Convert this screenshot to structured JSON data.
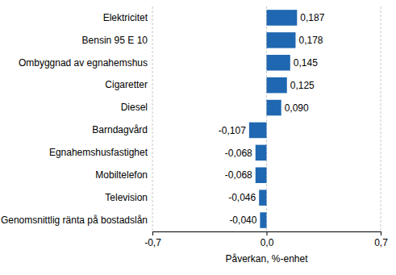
{
  "chart_data": {
    "type": "bar",
    "orientation": "horizontal",
    "categories": [
      "Elektricitet",
      "Bensin 95 E 10",
      "Ombyggnad av egnahemshus",
      "Cigaretter",
      "Diesel",
      "Barndagvård",
      "Egnahemshusfastighet",
      "Mobiltelefon",
      "Television",
      "Genomsnittlig ränta på bostadslån"
    ],
    "values": [
      0.187,
      0.178,
      0.145,
      0.125,
      0.09,
      -0.107,
      -0.068,
      -0.068,
      -0.046,
      -0.04
    ],
    "value_labels": [
      "0,187",
      "0,178",
      "0,145",
      "0,125",
      "0,090",
      "-0,107",
      "-0,068",
      "-0,068",
      "-0,046",
      "-0,040"
    ],
    "data_labels": true,
    "color": "#1f67b1",
    "x_label": "Påverkan, %-enhet",
    "xlim": [
      -0.7,
      0.7
    ],
    "xticks": [
      {
        "value": -0.7,
        "label": "-0,7"
      },
      {
        "value": 0.0,
        "label": "0,0"
      },
      {
        "value": 0.7,
        "label": "0,7"
      }
    ],
    "grid": true
  }
}
